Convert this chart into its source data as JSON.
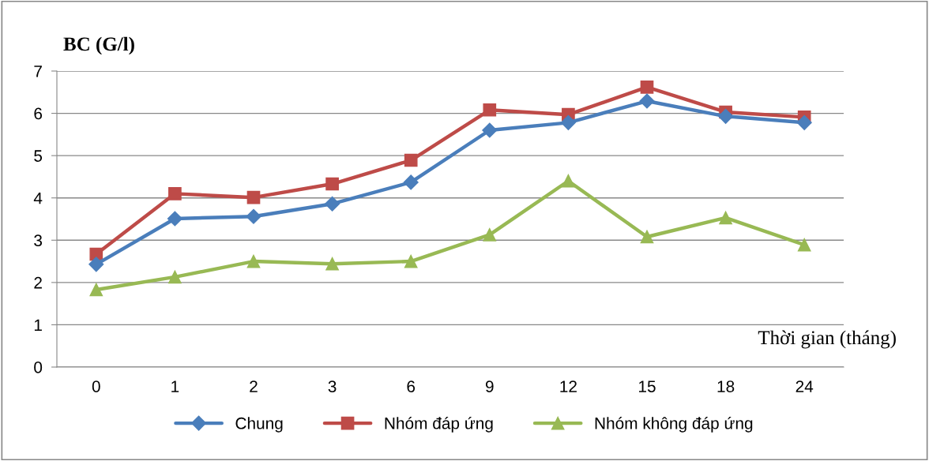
{
  "chart_data": {
    "type": "line",
    "ylabel": "BC (G/l)",
    "xlabel": "Thời gian (tháng)",
    "categories": [
      "0",
      "1",
      "2",
      "3",
      "6",
      "9",
      "12",
      "15",
      "18",
      "24"
    ],
    "ylim": [
      0,
      7
    ],
    "yticks": [
      0,
      1,
      2,
      3,
      4,
      5,
      6,
      7
    ],
    "grid": "y",
    "legend": "bottom",
    "line_style": "solid",
    "series": [
      {
        "name": "Chung",
        "color": "#4a7ebb",
        "marker": "diamond",
        "values": [
          2.43,
          3.51,
          3.56,
          3.86,
          4.37,
          5.6,
          5.78,
          6.29,
          5.93,
          5.78
        ]
      },
      {
        "name": "Nhóm đáp ứng",
        "color": "#be4b48",
        "marker": "square",
        "values": [
          2.67,
          4.1,
          4.01,
          4.33,
          4.89,
          6.08,
          5.97,
          6.62,
          6.03,
          5.91
        ]
      },
      {
        "name": "Nhóm không đáp ứng",
        "color": "#98b954",
        "marker": "triangle",
        "values": [
          1.83,
          2.13,
          2.5,
          2.44,
          2.5,
          3.13,
          4.4,
          3.08,
          3.53,
          2.89
        ]
      }
    ]
  }
}
